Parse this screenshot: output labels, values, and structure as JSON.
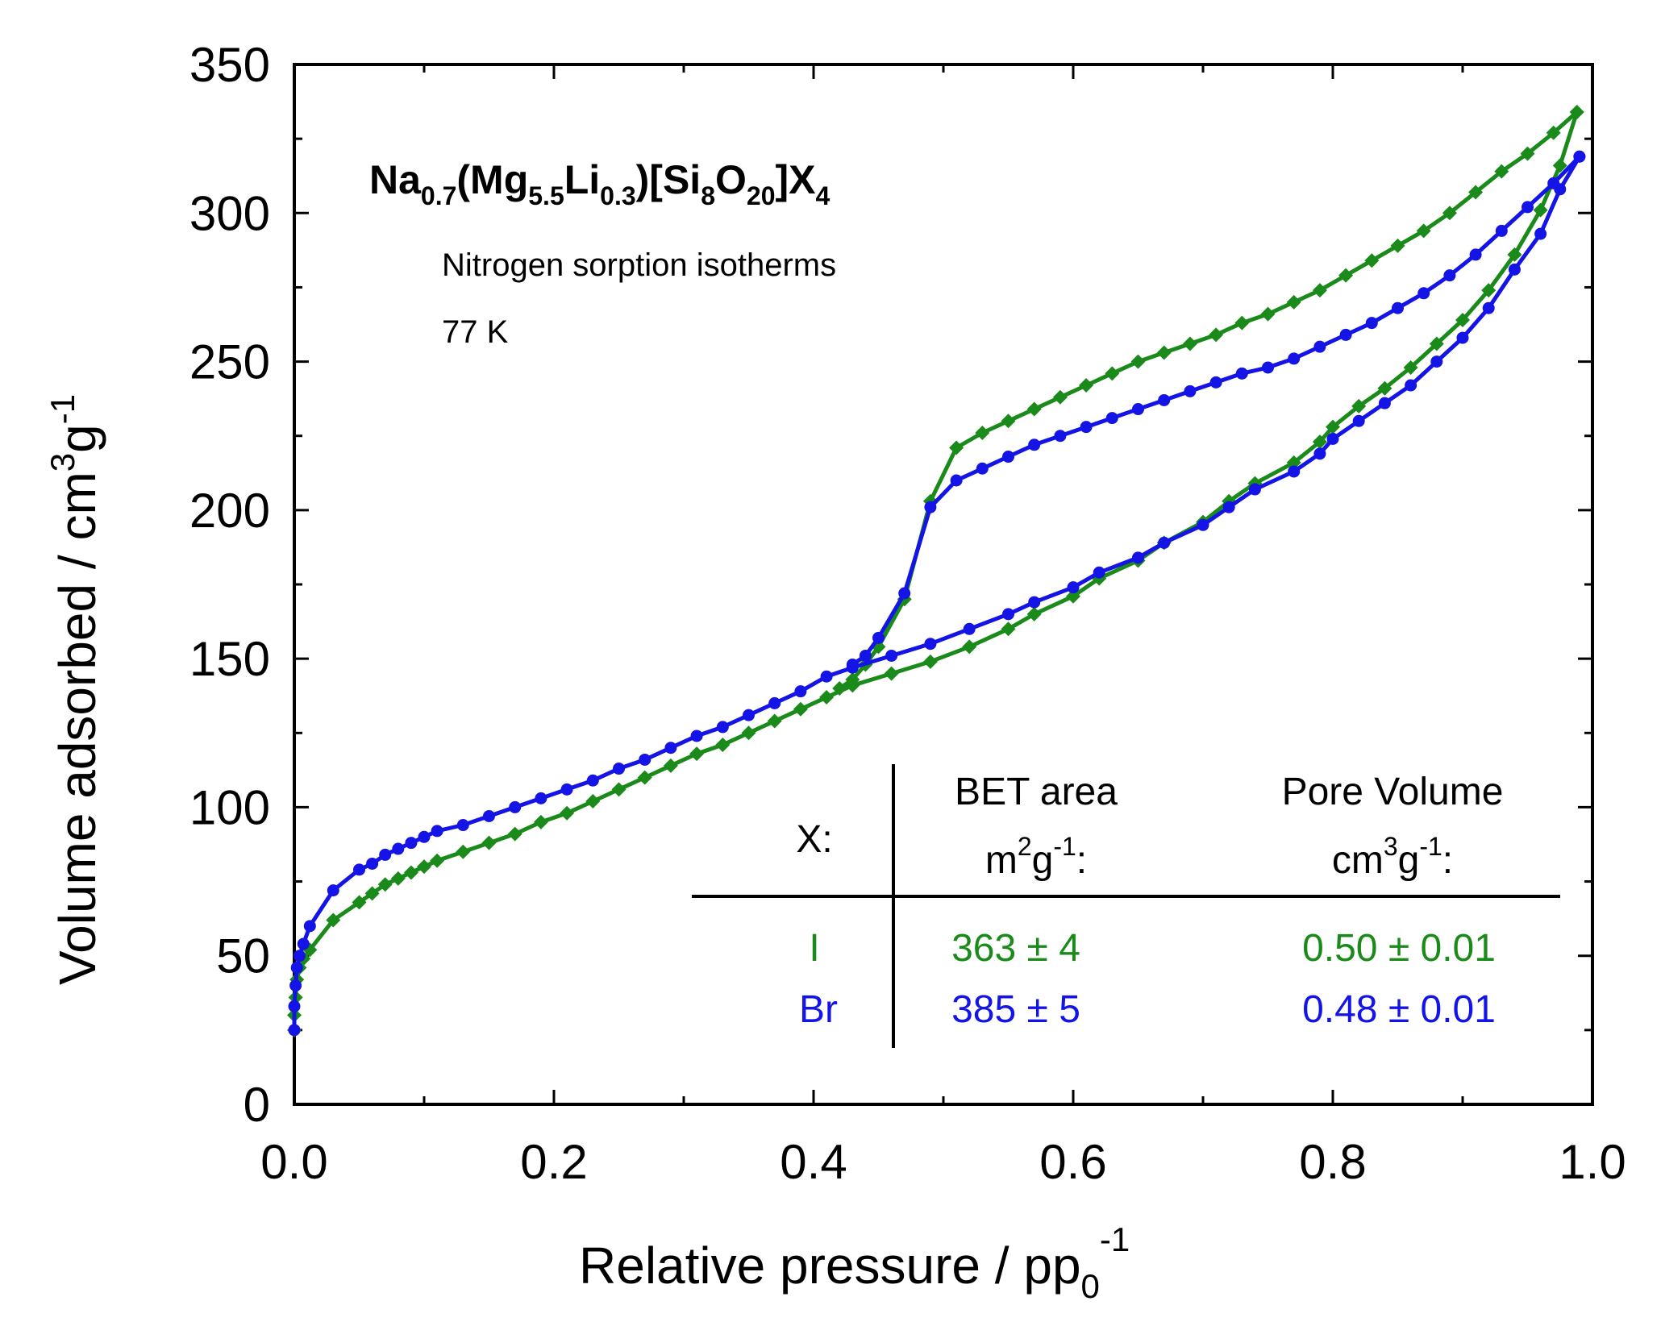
{
  "chart_data": {
    "type": "line",
    "title": "",
    "xlabel": "Relative pressure / pp",
    "xlabel_sub": "0",
    "xlabel_sup": "-1",
    "ylabel": "Volume adsorbed / cm",
    "ylabel_sup1": "3",
    "ylabel_mid": "g",
    "ylabel_sup2": "-1",
    "xlim": [
      0.0,
      1.0
    ],
    "ylim": [
      0,
      350
    ],
    "x_ticks": [
      "0.0",
      "0.2",
      "0.4",
      "0.6",
      "0.8",
      "1.0"
    ],
    "y_ticks": [
      "0",
      "50",
      "100",
      "150",
      "200",
      "250",
      "300",
      "350"
    ],
    "grid": false,
    "annotation": {
      "formula": [
        {
          "t": "Na",
          "s": "n"
        },
        {
          "t": "0.7",
          "s": "sub"
        },
        {
          "t": "(Mg",
          "s": "n"
        },
        {
          "t": "5.5",
          "s": "sub"
        },
        {
          "t": "Li",
          "s": "n"
        },
        {
          "t": "0.3",
          "s": "sub"
        },
        {
          "t": ")[Si",
          "s": "n"
        },
        {
          "t": "8",
          "s": "sub"
        },
        {
          "t": "O",
          "s": "n"
        },
        {
          "t": "20",
          "s": "sub"
        },
        {
          "t": "]X",
          "s": "n"
        },
        {
          "t": "4",
          "s": "sub"
        }
      ],
      "line1": "Nitrogen sorption isotherms",
      "line2": "77 K"
    },
    "table": {
      "x_header": "X:",
      "bet_header": "BET area",
      "bet_unit_a": "m",
      "bet_unit_sup1": "2",
      "bet_unit_b": "g",
      "bet_unit_sup2": "-1",
      "bet_unit_c": ":",
      "pore_header": "Pore Volume",
      "pore_unit_a": "cm",
      "pore_unit_sup1": "3",
      "pore_unit_b": "g",
      "pore_unit_sup2": "-1",
      "pore_unit_c": ":",
      "rows": [
        {
          "x": "I",
          "bet": "363 ± 4",
          "pore": "0.50 ± 0.01",
          "color": "#1a8a1a"
        },
        {
          "x": "Br",
          "bet": "385 ± 5",
          "pore": "0.48 ± 0.01",
          "color": "#1414e6"
        }
      ]
    },
    "series": [
      {
        "color": "#1a8a1a",
        "marker": "diamond",
        "adsorption": [
          [
            0.0,
            25
          ],
          [
            0.0,
            30
          ],
          [
            0.001,
            36
          ],
          [
            0.002,
            42
          ],
          [
            0.004,
            46
          ],
          [
            0.007,
            49
          ],
          [
            0.012,
            52
          ],
          [
            0.03,
            62
          ],
          [
            0.05,
            68
          ],
          [
            0.06,
            71
          ],
          [
            0.07,
            74
          ],
          [
            0.08,
            76
          ],
          [
            0.09,
            78
          ],
          [
            0.1,
            80
          ],
          [
            0.11,
            82
          ],
          [
            0.13,
            85
          ],
          [
            0.15,
            88
          ],
          [
            0.17,
            91
          ],
          [
            0.19,
            95
          ],
          [
            0.21,
            98
          ],
          [
            0.23,
            102
          ],
          [
            0.25,
            106
          ],
          [
            0.27,
            110
          ],
          [
            0.29,
            114
          ],
          [
            0.31,
            118
          ],
          [
            0.33,
            121
          ],
          [
            0.35,
            125
          ],
          [
            0.37,
            129
          ],
          [
            0.39,
            133
          ],
          [
            0.41,
            137
          ],
          [
            0.43,
            141
          ],
          [
            0.46,
            145
          ],
          [
            0.49,
            149
          ],
          [
            0.52,
            154
          ],
          [
            0.55,
            160
          ],
          [
            0.57,
            165
          ],
          [
            0.6,
            171
          ],
          [
            0.62,
            177
          ],
          [
            0.65,
            183
          ],
          [
            0.67,
            189
          ],
          [
            0.7,
            196
          ],
          [
            0.72,
            203
          ],
          [
            0.74,
            209
          ],
          [
            0.77,
            216
          ],
          [
            0.79,
            223
          ],
          [
            0.8,
            228
          ],
          [
            0.82,
            235
          ],
          [
            0.84,
            241
          ],
          [
            0.86,
            248
          ],
          [
            0.88,
            256
          ],
          [
            0.9,
            264
          ],
          [
            0.92,
            274
          ],
          [
            0.94,
            286
          ],
          [
            0.96,
            301
          ],
          [
            0.975,
            316
          ],
          [
            0.988,
            334
          ]
        ],
        "desorption": [
          [
            0.988,
            334
          ],
          [
            0.97,
            327
          ],
          [
            0.95,
            320
          ],
          [
            0.93,
            314
          ],
          [
            0.91,
            307
          ],
          [
            0.89,
            300
          ],
          [
            0.87,
            294
          ],
          [
            0.85,
            289
          ],
          [
            0.83,
            284
          ],
          [
            0.81,
            279
          ],
          [
            0.79,
            274
          ],
          [
            0.77,
            270
          ],
          [
            0.75,
            266
          ],
          [
            0.73,
            263
          ],
          [
            0.71,
            259
          ],
          [
            0.69,
            256
          ],
          [
            0.67,
            253
          ],
          [
            0.65,
            250
          ],
          [
            0.63,
            246
          ],
          [
            0.61,
            242
          ],
          [
            0.59,
            238
          ],
          [
            0.57,
            234
          ],
          [
            0.55,
            230
          ],
          [
            0.53,
            226
          ],
          [
            0.51,
            221
          ],
          [
            0.49,
            203
          ],
          [
            0.47,
            170
          ],
          [
            0.45,
            154
          ],
          [
            0.44,
            148
          ],
          [
            0.43,
            143
          ],
          [
            0.42,
            140
          ]
        ]
      },
      {
        "color": "#1414e6",
        "marker": "circle",
        "adsorption": [
          [
            0.0,
            25
          ],
          [
            0.0,
            33
          ],
          [
            0.001,
            40
          ],
          [
            0.002,
            46
          ],
          [
            0.004,
            50
          ],
          [
            0.007,
            54
          ],
          [
            0.012,
            60
          ],
          [
            0.03,
            72
          ],
          [
            0.05,
            79
          ],
          [
            0.06,
            81
          ],
          [
            0.07,
            84
          ],
          [
            0.08,
            86
          ],
          [
            0.09,
            88
          ],
          [
            0.1,
            90
          ],
          [
            0.11,
            92
          ],
          [
            0.13,
            94
          ],
          [
            0.15,
            97
          ],
          [
            0.17,
            100
          ],
          [
            0.19,
            103
          ],
          [
            0.21,
            106
          ],
          [
            0.23,
            109
          ],
          [
            0.25,
            113
          ],
          [
            0.27,
            116
          ],
          [
            0.29,
            120
          ],
          [
            0.31,
            124
          ],
          [
            0.33,
            127
          ],
          [
            0.35,
            131
          ],
          [
            0.37,
            135
          ],
          [
            0.39,
            139
          ],
          [
            0.41,
            144
          ],
          [
            0.43,
            147
          ],
          [
            0.46,
            151
          ],
          [
            0.49,
            155
          ],
          [
            0.52,
            160
          ],
          [
            0.55,
            165
          ],
          [
            0.57,
            169
          ],
          [
            0.6,
            174
          ],
          [
            0.62,
            179
          ],
          [
            0.65,
            184
          ],
          [
            0.67,
            189
          ],
          [
            0.7,
            195
          ],
          [
            0.72,
            201
          ],
          [
            0.74,
            207
          ],
          [
            0.77,
            213
          ],
          [
            0.79,
            219
          ],
          [
            0.8,
            224
          ],
          [
            0.82,
            230
          ],
          [
            0.84,
            236
          ],
          [
            0.86,
            242
          ],
          [
            0.88,
            250
          ],
          [
            0.9,
            258
          ],
          [
            0.92,
            268
          ],
          [
            0.94,
            281
          ],
          [
            0.96,
            293
          ],
          [
            0.975,
            308
          ],
          [
            0.99,
            319
          ]
        ],
        "desorption": [
          [
            0.99,
            319
          ],
          [
            0.97,
            310
          ],
          [
            0.95,
            302
          ],
          [
            0.93,
            294
          ],
          [
            0.91,
            286
          ],
          [
            0.89,
            279
          ],
          [
            0.87,
            273
          ],
          [
            0.85,
            268
          ],
          [
            0.83,
            263
          ],
          [
            0.81,
            259
          ],
          [
            0.79,
            255
          ],
          [
            0.77,
            251
          ],
          [
            0.75,
            248
          ],
          [
            0.73,
            246
          ],
          [
            0.71,
            243
          ],
          [
            0.69,
            240
          ],
          [
            0.67,
            237
          ],
          [
            0.65,
            234
          ],
          [
            0.63,
            231
          ],
          [
            0.61,
            228
          ],
          [
            0.59,
            225
          ],
          [
            0.57,
            222
          ],
          [
            0.55,
            218
          ],
          [
            0.53,
            214
          ],
          [
            0.51,
            210
          ],
          [
            0.49,
            201
          ],
          [
            0.47,
            172
          ],
          [
            0.45,
            157
          ],
          [
            0.44,
            151
          ],
          [
            0.43,
            148
          ]
        ]
      }
    ]
  }
}
